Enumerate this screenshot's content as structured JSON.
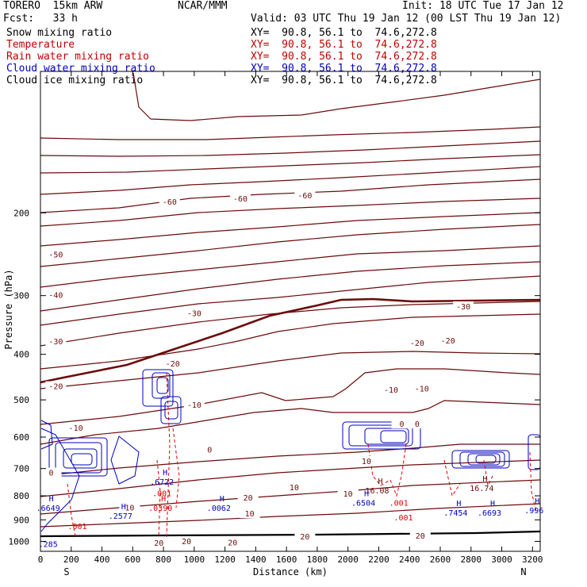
{
  "header": {
    "model": "TORERO  15km ARW",
    "org": "NCAR/MMM",
    "init": "Init: 18 UTC Tue 17 Jan 12",
    "fcst": "Fcst:   33 h",
    "valid": "Valid: 03 UTC Thu 19 Jan 12 (00 LST Thu 19 Jan 12)"
  },
  "fields": [
    {
      "name": "Snow mixing ratio",
      "color": "#000000",
      "xy": "XY=  90.8, 56.1 to  74.6,272.8"
    },
    {
      "name": "Temperature",
      "color": "#c00000",
      "xy": "XY=  90.8, 56.1 to  74.6,272.8"
    },
    {
      "name": "Rain water mixing ratio",
      "color": "#c00000",
      "xy": "XY=  90.8, 56.1 to  74.6,272.8"
    },
    {
      "name": "Cloud water mixing ratio",
      "color": "#0000c0",
      "xy": "XY=  90.8, 56.1 to  74.6,272.8"
    },
    {
      "name": "Cloud ice mixing ratio",
      "color": "#000000",
      "xy": "XY=  90.8, 56.1 to  74.6,272.8"
    }
  ],
  "chart_data": {
    "type": "contour",
    "xlabel": "Distance (km)",
    "ylabel": "Pressure (hPa)",
    "xlim": [
      0,
      3250
    ],
    "ylim": [
      1050,
      100
    ],
    "y_scale": "log",
    "x_ticks": [
      0,
      200,
      400,
      600,
      800,
      1000,
      1200,
      1400,
      1600,
      1800,
      2000,
      2200,
      2400,
      2600,
      2800,
      3000,
      3200
    ],
    "y_ticks": [
      200,
      300,
      400,
      500,
      600,
      700,
      800,
      900,
      1000
    ],
    "endpoints": {
      "left": "S",
      "right": "N"
    },
    "colors": {
      "temperature": "#6b0a0a",
      "cloud_water": "#0000c0",
      "rain": "#e00000",
      "ground": "#000000"
    },
    "temperature_labels": [
      {
        "x": 840,
        "p": 190,
        "text": "-60"
      },
      {
        "x": 1300,
        "p": 187,
        "text": "-60"
      },
      {
        "x": 1720,
        "p": 184,
        "text": "-60"
      },
      {
        "x": 100,
        "p": 246,
        "text": "-50"
      },
      {
        "x": 100,
        "p": 300,
        "text": "-40"
      },
      {
        "x": 1000,
        "p": 328,
        "text": "-30"
      },
      {
        "x": 2750,
        "p": 317,
        "text": "-30"
      },
      {
        "x": 100,
        "p": 376,
        "text": "-30"
      },
      {
        "x": 860,
        "p": 420,
        "text": "-20"
      },
      {
        "x": 2450,
        "p": 379,
        "text": "-20"
      },
      {
        "x": 2650,
        "p": 375,
        "text": "-20"
      },
      {
        "x": 100,
        "p": 469,
        "text": "-20"
      },
      {
        "x": 1000,
        "p": 514,
        "text": "-10"
      },
      {
        "x": 2280,
        "p": 477,
        "text": "-10"
      },
      {
        "x": 2480,
        "p": 474,
        "text": "-10"
      },
      {
        "x": 230,
        "p": 575,
        "text": "-10"
      },
      {
        "x": 2350,
        "p": 564,
        "text": "0"
      },
      {
        "x": 2450,
        "p": 564,
        "text": "0"
      },
      {
        "x": 1100,
        "p": 640,
        "text": "0"
      },
      {
        "x": 70,
        "p": 716,
        "text": "0"
      },
      {
        "x": 2120,
        "p": 677,
        "text": "10"
      },
      {
        "x": 1650,
        "p": 769,
        "text": "10"
      },
      {
        "x": 2000,
        "p": 793,
        "text": "10"
      },
      {
        "x": 580,
        "p": 850,
        "text": "10"
      },
      {
        "x": 1360,
        "p": 875,
        "text": "10"
      },
      {
        "x": 1720,
        "p": 980,
        "text": "20"
      },
      {
        "x": 2470,
        "p": 975,
        "text": "20"
      },
      {
        "x": 950,
        "p": 1002,
        "text": "20"
      },
      {
        "x": 1250,
        "p": 1008,
        "text": "20"
      },
      {
        "x": 770,
        "p": 1010,
        "text": "20"
      },
      {
        "x": 1350,
        "p": 810,
        "text": "20"
      }
    ],
    "maxima": [
      {
        "x": 790,
        "p": 752,
        "text": ".6722"
      },
      {
        "x": 50,
        "p": 855,
        "text": ".6649"
      },
      {
        "x": 520,
        "p": 888,
        "text": ".2577"
      },
      {
        "x": 780,
        "p": 855,
        "text": ".0390"
      },
      {
        "x": 1160,
        "p": 855,
        "text": ".0062"
      },
      {
        "x": 2190,
        "p": 785,
        "text": "16.08"
      },
      {
        "x": 2870,
        "p": 775,
        "text": "16.74"
      },
      {
        "x": 2100,
        "p": 833,
        "text": ".6504"
      },
      {
        "x": 2330,
        "p": 833,
        "text": ".001"
      },
      {
        "x": 2700,
        "p": 875,
        "text": ".7454"
      },
      {
        "x": 2920,
        "p": 875,
        "text": ".6693"
      },
      {
        "x": 3210,
        "p": 865,
        "text": ".996"
      },
      {
        "x": 790,
        "p": 795,
        "text": ".001"
      },
      {
        "x": 240,
        "p": 935,
        "text": ".001"
      },
      {
        "x": 2360,
        "p": 895,
        "text": ".001"
      },
      {
        "x": 50,
        "p": 1019,
        "text": ".285"
      }
    ]
  }
}
